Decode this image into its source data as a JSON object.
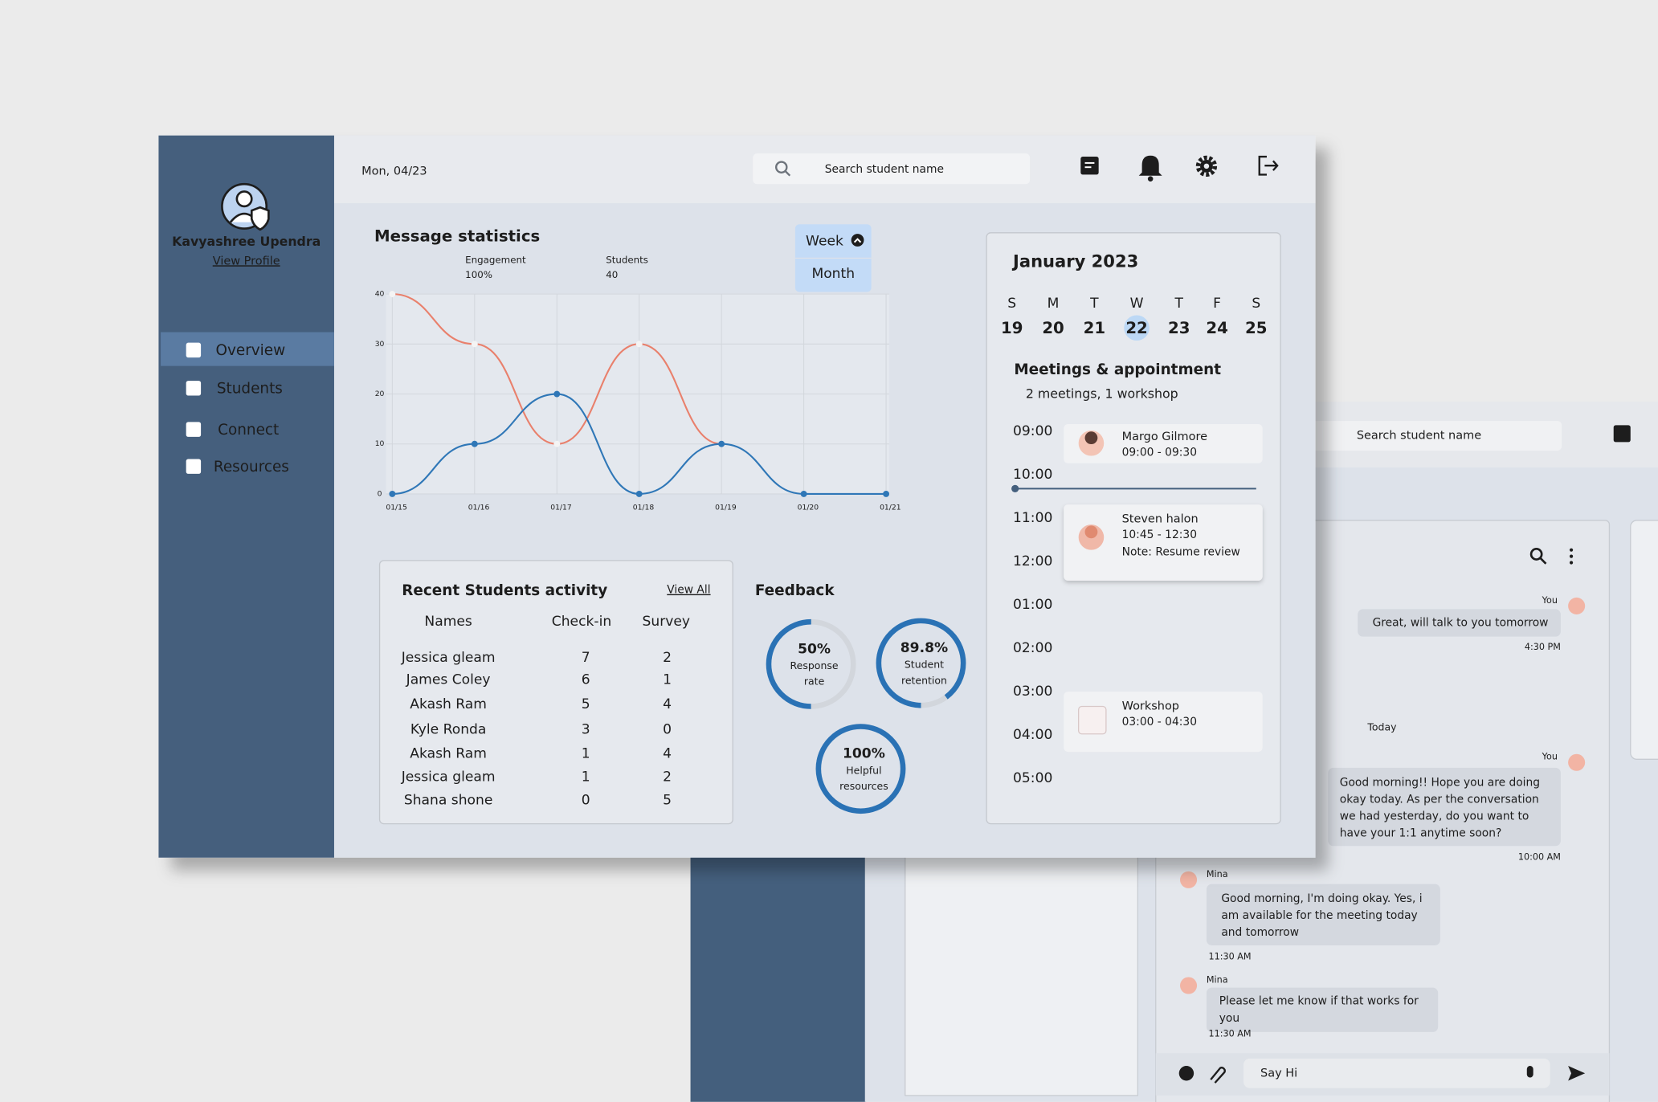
{
  "header": {
    "date": "Mon, 04/23",
    "search_placeholder": "Search student name"
  },
  "profile": {
    "name": "Kavyashree Upendra",
    "link": "View Profile"
  },
  "nav": [
    "Overview",
    "Students",
    "Connect",
    "Resources"
  ],
  "chart_data": {
    "type": "line",
    "title": "Message statistics",
    "categories": [
      "01/15",
      "01/16",
      "01/17",
      "01/18",
      "01/19",
      "01/20",
      "01/21"
    ],
    "series": [
      {
        "name": "Engagement",
        "label": "100%",
        "color": "#e9806c",
        "values": [
          40,
          30,
          10,
          30,
          10,
          null,
          null
        ]
      },
      {
        "name": "Students",
        "label": "40",
        "color": "#2f77b7",
        "values": [
          0,
          10,
          20,
          0,
          10,
          0,
          0
        ]
      }
    ],
    "ylim": [
      0,
      40
    ],
    "yticks": [
      0,
      10,
      20,
      30,
      40
    ],
    "grid": true
  },
  "range_toggle": [
    "Week",
    "Month"
  ],
  "activity": {
    "title": "Recent Students activity",
    "link": "View All",
    "columns": [
      "Names",
      "Check-in",
      "Survey"
    ],
    "rows": [
      [
        "Jessica gleam",
        7,
        2
      ],
      [
        "James Coley",
        6,
        1
      ],
      [
        "Akash Ram",
        5,
        4
      ],
      [
        "Kyle Ronda",
        3,
        0
      ],
      [
        "Akash Ram",
        1,
        4
      ],
      [
        "Jessica gleam",
        1,
        2
      ],
      [
        "Shana shone",
        0,
        5
      ]
    ]
  },
  "feedback": {
    "title": "Feedback",
    "items": [
      {
        "value": 50,
        "label": "50%",
        "caption": [
          "Response",
          "rate"
        ]
      },
      {
        "value": 89.8,
        "label": "89.8%",
        "caption": [
          "Student",
          "retention"
        ]
      },
      {
        "value": 100,
        "label": "100%",
        "caption": [
          "Helpful",
          "resources"
        ]
      }
    ]
  },
  "calendar": {
    "month": "January 2023",
    "weekdays": [
      "S",
      "M",
      "T",
      "W",
      "T",
      "F",
      "S"
    ],
    "days": [
      19,
      20,
      21,
      22,
      23,
      24,
      25
    ],
    "selected": 3
  },
  "schedule": {
    "title": "Meetings & appointment",
    "summary": "2 meetings, 1 workshop",
    "times": [
      "09:00",
      "10:00",
      "11:00",
      "12:00",
      "01:00",
      "02:00",
      "03:00",
      "04:00",
      "05:00"
    ],
    "events": [
      {
        "name": "Margo Gilmore",
        "time": "09:00 - 09:30"
      },
      {
        "name": "Steven halon",
        "time": "10:45 - 12:30",
        "note": "Note: Resume review"
      },
      {
        "name": "Workshop",
        "time": "03:00 - 04:30"
      }
    ]
  },
  "back_window": {
    "search_placeholder": "Search student name",
    "divider": "Today",
    "input_placeholder": "Say Hi",
    "messages": [
      {
        "sender": "You",
        "lines": [
          "Great, will talk to you tomorrow"
        ],
        "time": "4:30 PM"
      },
      {
        "sender": "You",
        "lines": [
          "Good morning!! Hope you are doing",
          "okay today. As per the conversation",
          "we had yesterday, do you want to",
          "have your 1:1 anytime soon?"
        ],
        "time": "10:00 AM"
      },
      {
        "sender": "Mina",
        "lines": [
          "Good morning, I'm doing okay. Yes, i",
          "am available for the meeting today",
          "and tomorrow"
        ],
        "time": "11:30 AM"
      },
      {
        "sender": "Mina",
        "lines": [
          "Please let me know if that works for",
          "you"
        ],
        "time": "11:30 AM"
      }
    ]
  }
}
